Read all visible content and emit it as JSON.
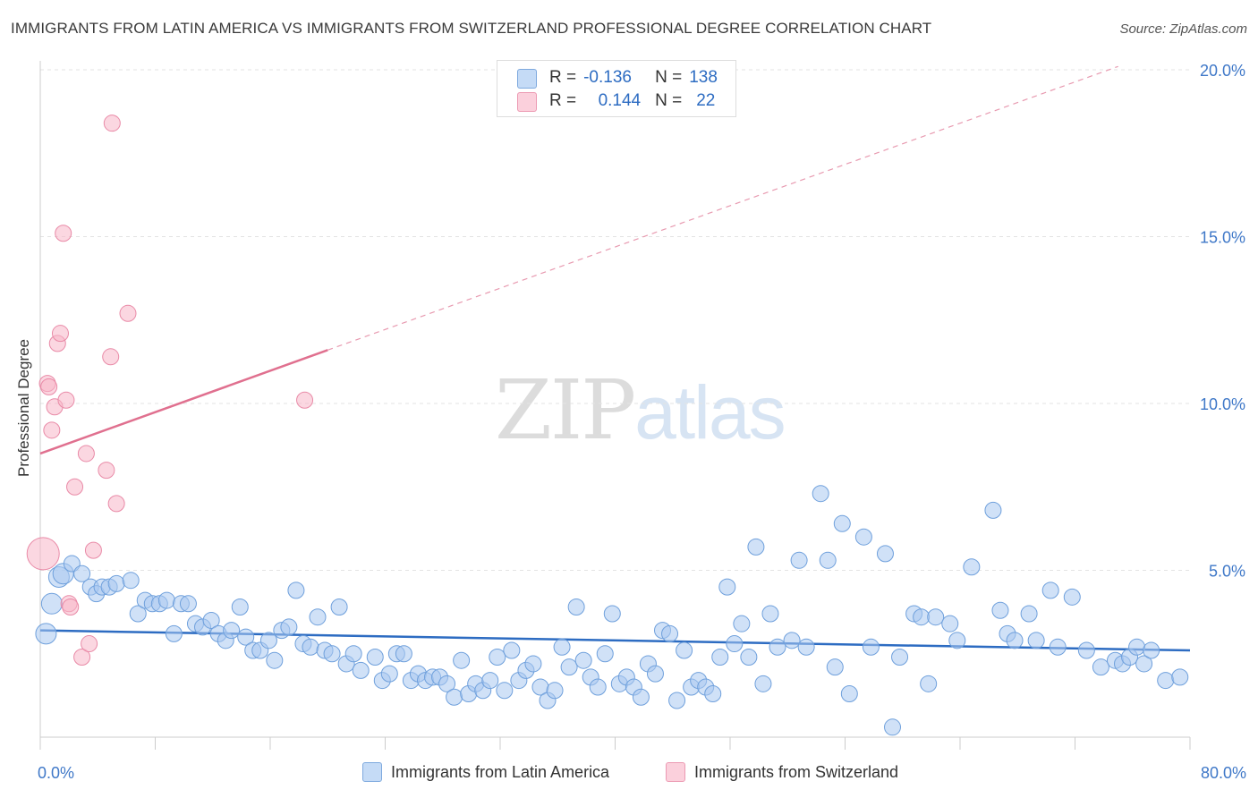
{
  "header": {
    "title": "IMMIGRANTS FROM LATIN AMERICA VS IMMIGRANTS FROM SWITZERLAND PROFESSIONAL DEGREE CORRELATION CHART",
    "source": "Source: ZipAtlas.com"
  },
  "watermark": {
    "zip": "ZIP",
    "atlas": "atlas"
  },
  "legend_top": {
    "rows": [
      {
        "r_label": "R =",
        "r_value": "-0.136",
        "n_label": "N =",
        "n_value": "138",
        "color": "#a9c8f0"
      },
      {
        "r_label": "R =",
        "r_value": "0.144",
        "n_label": "N =",
        "n_value": "22",
        "color": "#f7b6c8"
      }
    ]
  },
  "chart_data": {
    "type": "scatter",
    "title": "IMMIGRANTS FROM LATIN AMERICA VS IMMIGRANTS FROM SWITZERLAND PROFESSIONAL DEGREE CORRELATION CHART",
    "xlabel": "",
    "ylabel": "Professional Degree",
    "xlim": [
      0,
      80
    ],
    "ylim": [
      0,
      20
    ],
    "x_tick_labels": [
      "0.0%",
      "80.0%"
    ],
    "y_ticks": [
      5,
      10,
      15,
      20
    ],
    "y_tick_labels": [
      "5.0%",
      "10.0%",
      "15.0%",
      "20.0%"
    ],
    "grid": true,
    "series": [
      {
        "name": "Immigrants from Latin America",
        "color": "#a9c8f0",
        "stroke": "#6fa0dc",
        "trend": {
          "x": [
            0,
            80
          ],
          "y": [
            3.2,
            2.6
          ],
          "color": "#2d6cc2"
        },
        "points": [
          [
            0.4,
            3.1
          ],
          [
            0.8,
            4.0
          ],
          [
            1.3,
            4.8
          ],
          [
            1.6,
            4.9
          ],
          [
            2.2,
            5.2
          ],
          [
            2.9,
            4.9
          ],
          [
            3.5,
            4.5
          ],
          [
            3.9,
            4.3
          ],
          [
            4.3,
            4.5
          ],
          [
            4.8,
            4.5
          ],
          [
            5.3,
            4.6
          ],
          [
            6.3,
            4.7
          ],
          [
            6.8,
            3.7
          ],
          [
            7.3,
            4.1
          ],
          [
            7.8,
            4.0
          ],
          [
            8.3,
            4.0
          ],
          [
            8.8,
            4.1
          ],
          [
            9.3,
            3.1
          ],
          [
            9.8,
            4.0
          ],
          [
            10.3,
            4.0
          ],
          [
            10.8,
            3.4
          ],
          [
            11.3,
            3.3
          ],
          [
            11.9,
            3.5
          ],
          [
            12.4,
            3.1
          ],
          [
            12.9,
            2.9
          ],
          [
            13.3,
            3.2
          ],
          [
            13.9,
            3.9
          ],
          [
            14.3,
            3.0
          ],
          [
            14.8,
            2.6
          ],
          [
            15.3,
            2.6
          ],
          [
            15.9,
            2.9
          ],
          [
            16.3,
            2.3
          ],
          [
            16.8,
            3.2
          ],
          [
            17.3,
            3.3
          ],
          [
            17.8,
            4.4
          ],
          [
            18.3,
            2.8
          ],
          [
            18.8,
            2.7
          ],
          [
            19.3,
            3.6
          ],
          [
            19.8,
            2.6
          ],
          [
            20.3,
            2.5
          ],
          [
            20.8,
            3.9
          ],
          [
            21.3,
            2.2
          ],
          [
            21.8,
            2.5
          ],
          [
            22.3,
            2.0
          ],
          [
            23.3,
            2.4
          ],
          [
            23.8,
            1.7
          ],
          [
            24.3,
            1.9
          ],
          [
            24.8,
            2.5
          ],
          [
            25.3,
            2.5
          ],
          [
            25.8,
            1.7
          ],
          [
            26.3,
            1.9
          ],
          [
            26.8,
            1.7
          ],
          [
            27.3,
            1.8
          ],
          [
            27.8,
            1.8
          ],
          [
            28.3,
            1.6
          ],
          [
            28.8,
            1.2
          ],
          [
            29.3,
            2.3
          ],
          [
            29.8,
            1.3
          ],
          [
            30.3,
            1.6
          ],
          [
            30.8,
            1.4
          ],
          [
            31.3,
            1.7
          ],
          [
            31.8,
            2.4
          ],
          [
            32.3,
            1.4
          ],
          [
            32.8,
            2.6
          ],
          [
            33.3,
            1.7
          ],
          [
            33.8,
            2.0
          ],
          [
            34.3,
            2.2
          ],
          [
            34.8,
            1.5
          ],
          [
            35.3,
            1.1
          ],
          [
            35.8,
            1.4
          ],
          [
            36.3,
            2.7
          ],
          [
            36.8,
            2.1
          ],
          [
            37.3,
            3.9
          ],
          [
            37.8,
            2.3
          ],
          [
            38.3,
            1.8
          ],
          [
            38.8,
            1.5
          ],
          [
            39.3,
            2.5
          ],
          [
            39.8,
            3.7
          ],
          [
            40.3,
            1.6
          ],
          [
            40.8,
            1.8
          ],
          [
            41.3,
            1.5
          ],
          [
            41.8,
            1.2
          ],
          [
            42.3,
            2.2
          ],
          [
            42.8,
            1.9
          ],
          [
            43.3,
            3.2
          ],
          [
            43.8,
            3.1
          ],
          [
            44.3,
            1.1
          ],
          [
            44.8,
            2.6
          ],
          [
            45.3,
            1.5
          ],
          [
            45.8,
            1.7
          ],
          [
            46.3,
            1.5
          ],
          [
            46.8,
            1.3
          ],
          [
            47.3,
            2.4
          ],
          [
            47.8,
            4.5
          ],
          [
            48.3,
            2.8
          ],
          [
            48.8,
            3.4
          ],
          [
            49.3,
            2.4
          ],
          [
            49.8,
            5.7
          ],
          [
            50.3,
            1.6
          ],
          [
            50.8,
            3.7
          ],
          [
            51.3,
            2.7
          ],
          [
            52.3,
            2.9
          ],
          [
            52.8,
            5.3
          ],
          [
            53.3,
            2.7
          ],
          [
            54.3,
            7.3
          ],
          [
            54.8,
            5.3
          ],
          [
            55.3,
            2.1
          ],
          [
            55.8,
            6.4
          ],
          [
            56.3,
            1.3
          ],
          [
            57.3,
            6.0
          ],
          [
            57.8,
            2.7
          ],
          [
            58.8,
            5.5
          ],
          [
            59.3,
            0.3
          ],
          [
            59.8,
            2.4
          ],
          [
            60.8,
            3.7
          ],
          [
            61.3,
            3.6
          ],
          [
            61.8,
            1.6
          ],
          [
            62.3,
            3.6
          ],
          [
            63.3,
            3.4
          ],
          [
            63.8,
            2.9
          ],
          [
            64.8,
            5.1
          ],
          [
            66.3,
            6.8
          ],
          [
            66.8,
            3.8
          ],
          [
            67.3,
            3.1
          ],
          [
            67.8,
            2.9
          ],
          [
            68.8,
            3.7
          ],
          [
            69.3,
            2.9
          ],
          [
            70.3,
            4.4
          ],
          [
            70.8,
            2.7
          ],
          [
            71.8,
            4.2
          ],
          [
            72.8,
            2.6
          ],
          [
            73.8,
            2.1
          ],
          [
            74.8,
            2.3
          ],
          [
            75.3,
            2.2
          ],
          [
            75.8,
            2.4
          ],
          [
            76.3,
            2.7
          ],
          [
            76.8,
            2.2
          ],
          [
            78.3,
            1.7
          ],
          [
            79.3,
            1.8
          ],
          [
            77.3,
            2.6
          ]
        ]
      },
      {
        "name": "Immigrants from Switzerland",
        "color": "#f7b6c8",
        "stroke": "#e98aa7",
        "trend": {
          "x": [
            0,
            20
          ],
          "y": [
            8.5,
            11.6
          ],
          "color": "#e0708f"
        },
        "trend_extended": {
          "x": [
            20,
            75
          ],
          "y": [
            11.6,
            20.1
          ],
          "style": "dashed"
        },
        "points": [
          [
            0.2,
            5.5
          ],
          [
            0.5,
            10.6
          ],
          [
            0.6,
            10.5
          ],
          [
            0.8,
            9.2
          ],
          [
            1.0,
            9.9
          ],
          [
            1.2,
            11.8
          ],
          [
            1.4,
            12.1
          ],
          [
            1.6,
            15.1
          ],
          [
            1.8,
            10.1
          ],
          [
            2.0,
            4.0
          ],
          [
            2.1,
            3.9
          ],
          [
            2.4,
            7.5
          ],
          [
            2.9,
            2.4
          ],
          [
            3.2,
            8.5
          ],
          [
            3.4,
            2.8
          ],
          [
            3.7,
            5.6
          ],
          [
            4.6,
            8.0
          ],
          [
            4.9,
            11.4
          ],
          [
            5.3,
            7.0
          ],
          [
            6.1,
            12.7
          ],
          [
            5.0,
            18.4
          ],
          [
            18.4,
            10.1
          ]
        ]
      }
    ]
  },
  "bottom_legend": {
    "items": [
      {
        "label": "Immigrants from Latin America",
        "color": "#a9c8f0"
      },
      {
        "label": "Immigrants from Switzerland",
        "color": "#f7b6c8"
      }
    ]
  }
}
